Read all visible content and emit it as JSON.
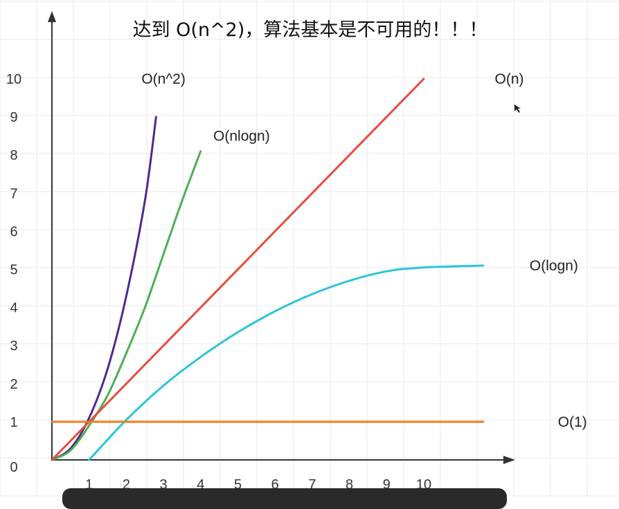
{
  "chart_data": {
    "type": "line",
    "title": "达到 O(n^2)，算法基本是不可用的！！！",
    "xlabel": "",
    "ylabel": "",
    "x_ticks": [
      "1",
      "2",
      "3",
      "4",
      "5",
      "6",
      "7",
      "8",
      "9",
      "10"
    ],
    "y_ticks": [
      "0",
      "1",
      "2",
      "3",
      "4",
      "5",
      "6",
      "7",
      "8",
      "9",
      "10"
    ],
    "xlim": [
      0,
      11.6
    ],
    "ylim": [
      0,
      10.8
    ],
    "grid": true,
    "series": [
      {
        "name": "O(n^2)",
        "color": "#4b2a8f",
        "x": [
          0,
          0.5,
          1,
          1.5,
          2,
          2.5,
          2.8
        ],
        "y": [
          0,
          0.3,
          1.1,
          2.4,
          4.3,
          6.8,
          9.0
        ]
      },
      {
        "name": "O(nlogn)",
        "color": "#4caf50",
        "x": [
          0,
          0.5,
          1,
          1.5,
          2,
          2.5,
          3,
          3.5,
          4
        ],
        "y": [
          0,
          0.25,
          0.9,
          1.7,
          2.8,
          4.0,
          5.4,
          6.8,
          8.1
        ]
      },
      {
        "name": "O(n)",
        "color": "#e74c3c",
        "x": [
          0,
          10
        ],
        "y": [
          0,
          10
        ]
      },
      {
        "name": "O(logn)",
        "color": "#26c6da",
        "x": [
          1,
          2,
          3,
          4,
          5,
          6,
          7,
          8,
          9,
          10,
          11.6
        ],
        "y": [
          0,
          1.05,
          1.95,
          2.7,
          3.35,
          3.9,
          4.35,
          4.7,
          4.95,
          5.05,
          5.1
        ]
      },
      {
        "name": "O(1)",
        "color": "#e67e22",
        "x": [
          0,
          11.6
        ],
        "y": [
          1,
          1
        ]
      }
    ],
    "annotations": [
      {
        "text": "O(n^2)",
        "x": 3.0,
        "y": 10.0
      },
      {
        "text": "O(nlogn)",
        "x": 5.1,
        "y": 8.5
      },
      {
        "text": "O(n)",
        "x": 12.3,
        "y": 10.0
      },
      {
        "text": "O(logn)",
        "x": 13.5,
        "y": 5.1
      },
      {
        "text": "O(1)",
        "x": 14.0,
        "y": 1.0
      }
    ],
    "axis_color": "#333333",
    "grid_color": "#e8e8e8"
  }
}
